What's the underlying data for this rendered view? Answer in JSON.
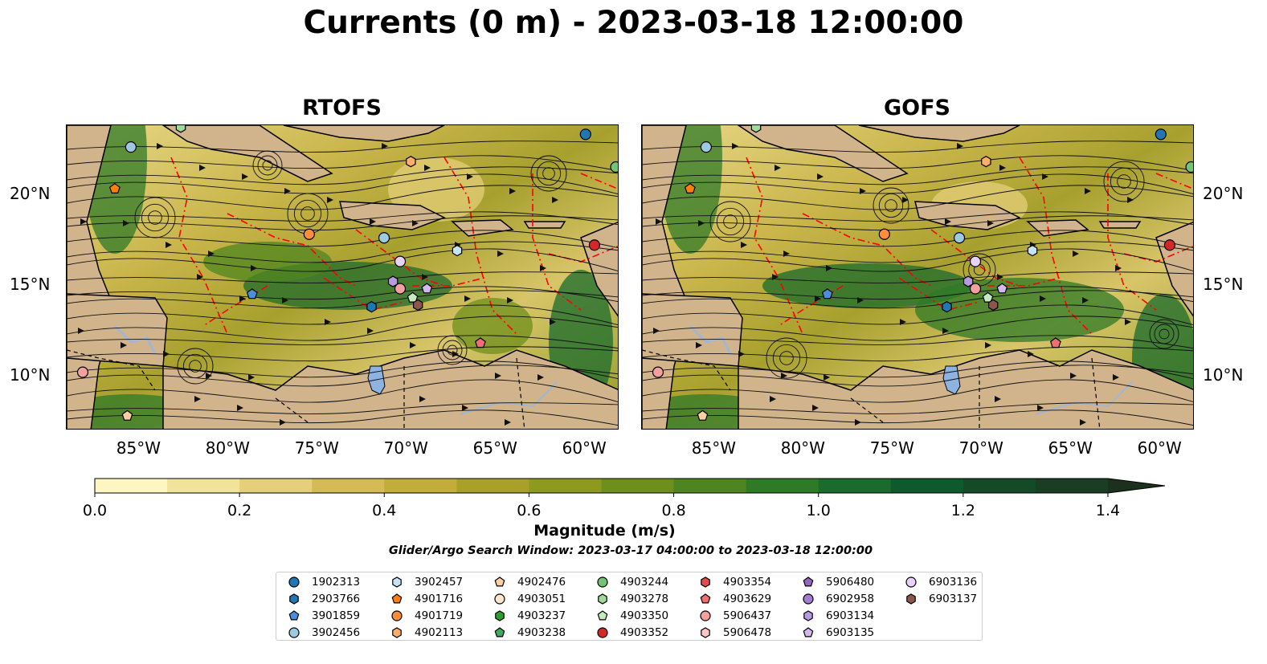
{
  "title": "Currents (0 m) - 2023-03-18 12:00:00",
  "panels": [
    {
      "title": "RTOFS"
    },
    {
      "title": "GOFS"
    }
  ],
  "axes": {
    "lon_ticks": [
      "85°W",
      "80°W",
      "75°W",
      "70°W",
      "65°W",
      "60°W"
    ],
    "lat_ticks": [
      "20°N",
      "15°N",
      "10°N"
    ]
  },
  "colorbar": {
    "label": "Magnitude (m/s)",
    "ticks": [
      "0.0",
      "0.2",
      "0.4",
      "0.6",
      "0.8",
      "1.0",
      "1.2",
      "1.4"
    ],
    "range": [
      0,
      1.5
    ],
    "extend": "max",
    "colors": [
      "#fdf6c3",
      "#f2e39b",
      "#e5cf7a",
      "#d4bb55",
      "#c2ad3a",
      "#a9a02a",
      "#8d9a1e",
      "#6f8f1c",
      "#4f8520",
      "#2f7a27",
      "#1a6b2c",
      "#0f5a2c",
      "#154a28",
      "#1a3d24",
      "#1b311e"
    ]
  },
  "map_colors": {
    "land": "#d2b48c",
    "lake": "#a8c0e0",
    "eez": "#ff0000",
    "border": "#000000"
  },
  "search_window": "Glider/Argo Search Window: 2023-03-17 04:00:00 to 2023-03-18 12:00:00",
  "legend": [
    {
      "id": "1902313",
      "marker": "circle",
      "color": "#1f77b4"
    },
    {
      "id": "2903766",
      "marker": "hexagon",
      "color": "#1f77b4"
    },
    {
      "id": "3901859",
      "marker": "pentagon",
      "color": "#4a90d9"
    },
    {
      "id": "3902456",
      "marker": "circle",
      "color": "#9ecae1"
    },
    {
      "id": "3902457",
      "marker": "hexagon",
      "color": "#c6e3f5"
    },
    {
      "id": "4901716",
      "marker": "pentagon",
      "color": "#ff7f0e"
    },
    {
      "id": "4901719",
      "marker": "circle",
      "color": "#fd8d3c"
    },
    {
      "id": "4902113",
      "marker": "hexagon",
      "color": "#fdae6b"
    },
    {
      "id": "4902476",
      "marker": "pentagon",
      "color": "#fdd0a2"
    },
    {
      "id": "4903051",
      "marker": "circle",
      "color": "#fee6ce"
    },
    {
      "id": "4903237",
      "marker": "hexagon",
      "color": "#2ca02c"
    },
    {
      "id": "4903238",
      "marker": "pentagon",
      "color": "#41ab5d"
    },
    {
      "id": "4903244",
      "marker": "circle",
      "color": "#74c476"
    },
    {
      "id": "4903278",
      "marker": "hexagon",
      "color": "#a1d99b"
    },
    {
      "id": "4903350",
      "marker": "pentagon",
      "color": "#c7e9c0"
    },
    {
      "id": "4903352",
      "marker": "circle",
      "color": "#d62728"
    },
    {
      "id": "4903354",
      "marker": "hexagon",
      "color": "#e34a4a"
    },
    {
      "id": "4903629",
      "marker": "pentagon",
      "color": "#f07070"
    },
    {
      "id": "5906437",
      "marker": "circle",
      "color": "#f4a0a0"
    },
    {
      "id": "5906478",
      "marker": "hexagon",
      "color": "#fcc5c5"
    },
    {
      "id": "5906480",
      "marker": "pentagon",
      "color": "#9467bd"
    },
    {
      "id": "6902958",
      "marker": "circle",
      "color": "#a27dd0"
    },
    {
      "id": "6903134",
      "marker": "hexagon",
      "color": "#b79ae0"
    },
    {
      "id": "6903135",
      "marker": "pentagon",
      "color": "#d3b8f0"
    },
    {
      "id": "6903136",
      "marker": "circle",
      "color": "#e8d2fa"
    },
    {
      "id": "6903137",
      "marker": "hexagon",
      "color": "#8c564b"
    }
  ]
}
